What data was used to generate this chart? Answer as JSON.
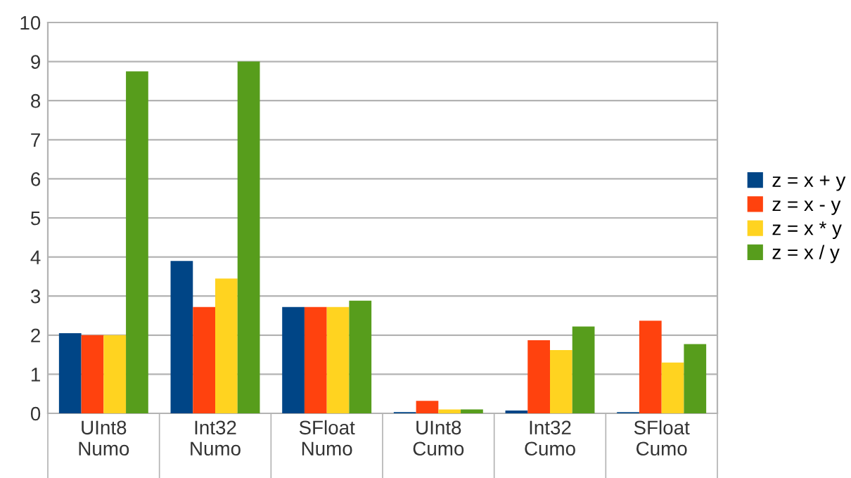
{
  "chart_data": {
    "type": "bar",
    "categories": [
      "UInt8\nNumo",
      "Int32\nNumo",
      "SFloat\nNumo",
      "UInt8\nCumo",
      "Int32\nCumo",
      "SFloat\nCumo"
    ],
    "series": [
      {
        "name": "z = x + y",
        "color": "#004586",
        "values": [
          2.05,
          3.9,
          2.72,
          0.03,
          0.07,
          0.03
        ]
      },
      {
        "name": "z = x - y",
        "color": "#ff420e",
        "values": [
          2.0,
          2.72,
          2.72,
          0.32,
          1.87,
          2.37
        ]
      },
      {
        "name": "z = x * y",
        "color": "#ffd320",
        "values": [
          2.0,
          3.45,
          2.72,
          0.1,
          1.62,
          1.3
        ]
      },
      {
        "name": "z = x / y",
        "color": "#579d1c",
        "values": [
          8.75,
          9.0,
          2.88,
          0.1,
          2.22,
          1.77
        ]
      }
    ],
    "ylim": [
      0,
      10
    ],
    "yticks": [
      0,
      1,
      2,
      3,
      4,
      5,
      6,
      7,
      8,
      9,
      10
    ],
    "grid": "y",
    "legend": "right"
  }
}
